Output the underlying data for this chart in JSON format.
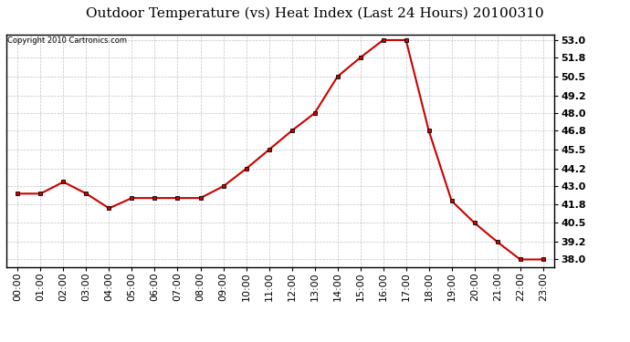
{
  "title": "Outdoor Temperature (vs) Heat Index (Last 24 Hours) 20100310",
  "copyright": "Copyright 2010 Cartronics.com",
  "x_labels": [
    "00:00",
    "01:00",
    "02:00",
    "03:00",
    "04:00",
    "05:00",
    "06:00",
    "07:00",
    "08:00",
    "09:00",
    "10:00",
    "11:00",
    "12:00",
    "13:00",
    "14:00",
    "15:00",
    "16:00",
    "17:00",
    "18:00",
    "19:00",
    "20:00",
    "21:00",
    "22:00",
    "23:00"
  ],
  "y_values": [
    42.5,
    42.5,
    43.3,
    42.5,
    41.5,
    42.2,
    42.2,
    42.2,
    42.2,
    43.0,
    44.2,
    45.5,
    46.8,
    48.0,
    50.5,
    51.8,
    53.0,
    53.0,
    46.8,
    42.0,
    40.5,
    39.2,
    38.0,
    38.0
  ],
  "line_color": "#cc0000",
  "marker": "s",
  "marker_size": 3,
  "background_color": "#ffffff",
  "grid_color": "#aaaaaa",
  "ylim": [
    37.5,
    53.4
  ],
  "yticks": [
    38.0,
    39.2,
    40.5,
    41.8,
    43.0,
    44.2,
    45.5,
    46.8,
    48.0,
    49.2,
    50.5,
    51.8,
    53.0
  ],
  "title_fontsize": 11,
  "copyright_fontsize": 6,
  "tick_fontsize": 8,
  "plot_bg_color": "#ffffff"
}
